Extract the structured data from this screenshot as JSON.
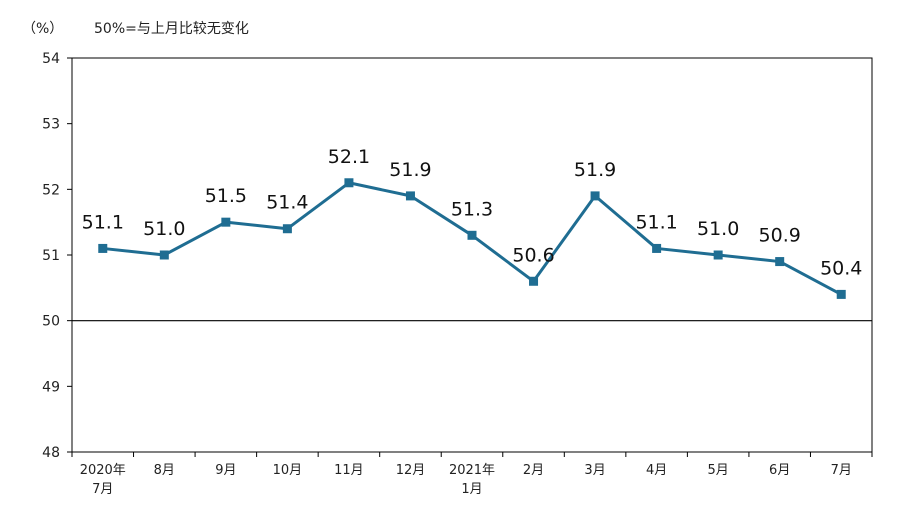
{
  "chart_data": {
    "type": "line",
    "unit_label": "（%）",
    "note": "50%=与上月比较无变化",
    "categories": [
      [
        "2020年",
        "7月"
      ],
      [
        "8月"
      ],
      [
        "9月"
      ],
      [
        "10月"
      ],
      [
        "11月"
      ],
      [
        "12月"
      ],
      [
        "2021年",
        "1月"
      ],
      [
        "2月"
      ],
      [
        "3月"
      ],
      [
        "4月"
      ],
      [
        "5月"
      ],
      [
        "6月"
      ],
      [
        "7月"
      ]
    ],
    "series": [
      {
        "values": [
          51.1,
          51.0,
          51.5,
          51.4,
          52.1,
          51.9,
          51.3,
          50.6,
          51.9,
          51.1,
          51.0,
          50.9,
          50.4
        ],
        "labels": [
          "51.1",
          "51.0",
          "51.5",
          "51.4",
          "52.1",
          "51.9",
          "51.3",
          "50.6",
          "51.9",
          "51.1",
          "51.0",
          "50.9",
          "50.4"
        ],
        "color": "#1f6d92"
      }
    ],
    "ylim": [
      48,
      54
    ],
    "yticks": [
      "48",
      "49",
      "50",
      "51",
      "52",
      "53",
      "54"
    ],
    "reference_line": 50,
    "grid": false,
    "legend": "none"
  }
}
